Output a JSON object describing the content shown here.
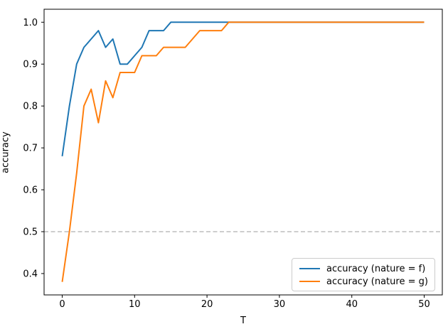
{
  "chart_data": {
    "type": "line",
    "title": "",
    "xlabel": "T",
    "ylabel": "accuracy",
    "grid": false,
    "legend_position": "lower right",
    "xlim": [
      -2.5,
      52.5
    ],
    "ylim": [
      0.349,
      1.031
    ],
    "xticks": [
      0,
      10,
      20,
      30,
      40,
      50
    ],
    "yticks": [
      0.4,
      0.5,
      0.6,
      0.7,
      0.8,
      0.9,
      1.0
    ],
    "reference_line": {
      "y": 0.5,
      "color": "#b0b0b0",
      "style": "dashed"
    },
    "x": [
      0,
      1,
      2,
      3,
      4,
      5,
      6,
      7,
      8,
      9,
      10,
      11,
      12,
      13,
      14,
      15,
      16,
      17,
      18,
      19,
      20,
      21,
      22,
      23,
      24,
      25,
      26,
      27,
      28,
      29,
      30,
      31,
      32,
      33,
      34,
      35,
      36,
      37,
      38,
      39,
      40,
      41,
      42,
      43,
      44,
      45,
      46,
      47,
      48,
      49,
      50
    ],
    "series": [
      {
        "name": "accuracy (nature = f)",
        "color": "#1f77b4",
        "values": [
          0.68,
          0.8,
          0.9,
          0.94,
          0.96,
          0.98,
          0.94,
          0.96,
          0.9,
          0.9,
          0.92,
          0.94,
          0.98,
          0.98,
          0.98,
          1.0,
          1.0,
          1.0,
          1.0,
          1.0,
          1.0,
          1.0,
          1.0,
          1.0,
          1.0,
          1.0,
          1.0,
          1.0,
          1.0,
          1.0,
          1.0,
          1.0,
          1.0,
          1.0,
          1.0,
          1.0,
          1.0,
          1.0,
          1.0,
          1.0,
          1.0,
          1.0,
          1.0,
          1.0,
          1.0,
          1.0,
          1.0,
          1.0,
          1.0,
          1.0,
          1.0
        ]
      },
      {
        "name": "accuracy (nature = g)",
        "color": "#ff7f0e",
        "values": [
          0.38,
          0.5,
          0.64,
          0.8,
          0.84,
          0.76,
          0.86,
          0.82,
          0.88,
          0.88,
          0.88,
          0.92,
          0.92,
          0.92,
          0.94,
          0.94,
          0.94,
          0.94,
          0.96,
          0.98,
          0.98,
          0.98,
          0.98,
          1.0,
          1.0,
          1.0,
          1.0,
          1.0,
          1.0,
          1.0,
          1.0,
          1.0,
          1.0,
          1.0,
          1.0,
          1.0,
          1.0,
          1.0,
          1.0,
          1.0,
          1.0,
          1.0,
          1.0,
          1.0,
          1.0,
          1.0,
          1.0,
          1.0,
          1.0,
          1.0,
          1.0
        ]
      }
    ]
  }
}
